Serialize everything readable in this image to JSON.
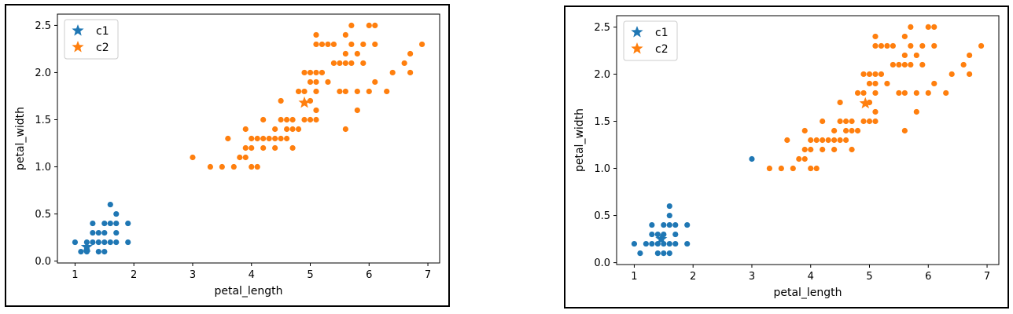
{
  "chart_data": [
    {
      "type": "scatter",
      "xlabel": "petal_length",
      "ylabel": "petal_width",
      "xlim": [
        0.7,
        7.2
      ],
      "ylim": [
        -0.02,
        2.62
      ],
      "xticks": [
        1,
        2,
        3,
        4,
        5,
        6,
        7
      ],
      "yticks": [
        0.0,
        0.5,
        1.0,
        1.5,
        2.0,
        2.5
      ],
      "grid": false,
      "legend": {
        "placement": "top-left",
        "entries": [
          "c1",
          "c2"
        ]
      },
      "colors": {
        "c1": "#1f77b4",
        "c2": "#ff7f0e"
      },
      "series": [
        {
          "name": "c1",
          "color": "#1f77b4",
          "points": [
            [
              1.0,
              0.2
            ],
            [
              1.1,
              0.1
            ],
            [
              1.2,
              0.2
            ],
            [
              1.2,
              0.1
            ],
            [
              1.3,
              0.2
            ],
            [
              1.3,
              0.3
            ],
            [
              1.3,
              0.4
            ],
            [
              1.4,
              0.1
            ],
            [
              1.4,
              0.2
            ],
            [
              1.4,
              0.3
            ],
            [
              1.5,
              0.1
            ],
            [
              1.5,
              0.2
            ],
            [
              1.5,
              0.3
            ],
            [
              1.5,
              0.4
            ],
            [
              1.6,
              0.2
            ],
            [
              1.6,
              0.4
            ],
            [
              1.6,
              0.6
            ],
            [
              1.7,
              0.2
            ],
            [
              1.7,
              0.3
            ],
            [
              1.7,
              0.4
            ],
            [
              1.7,
              0.5
            ],
            [
              1.9,
              0.2
            ],
            [
              1.9,
              0.4
            ]
          ],
          "centroid": [
            1.2,
            0.15
          ]
        },
        {
          "name": "c2",
          "color": "#ff7f0e",
          "points": [
            [
              3.0,
              1.1
            ],
            [
              3.3,
              1.0
            ],
            [
              3.5,
              1.0
            ],
            [
              3.6,
              1.3
            ],
            [
              3.7,
              1.0
            ],
            [
              3.8,
              1.1
            ],
            [
              3.9,
              1.1
            ],
            [
              3.9,
              1.2
            ],
            [
              3.9,
              1.4
            ],
            [
              4.0,
              1.0
            ],
            [
              4.0,
              1.2
            ],
            [
              4.0,
              1.3
            ],
            [
              4.1,
              1.0
            ],
            [
              4.1,
              1.3
            ],
            [
              4.2,
              1.2
            ],
            [
              4.2,
              1.3
            ],
            [
              4.2,
              1.5
            ],
            [
              4.3,
              1.3
            ],
            [
              4.4,
              1.2
            ],
            [
              4.4,
              1.3
            ],
            [
              4.4,
              1.4
            ],
            [
              4.5,
              1.3
            ],
            [
              4.5,
              1.5
            ],
            [
              4.5,
              1.7
            ],
            [
              4.6,
              1.3
            ],
            [
              4.6,
              1.4
            ],
            [
              4.6,
              1.5
            ],
            [
              4.7,
              1.2
            ],
            [
              4.7,
              1.4
            ],
            [
              4.7,
              1.5
            ],
            [
              4.8,
              1.4
            ],
            [
              4.8,
              1.8
            ],
            [
              4.9,
              1.5
            ],
            [
              4.9,
              1.8
            ],
            [
              4.9,
              2.0
            ],
            [
              5.0,
              1.5
            ],
            [
              5.0,
              1.7
            ],
            [
              5.0,
              1.9
            ],
            [
              5.0,
              2.0
            ],
            [
              5.1,
              1.5
            ],
            [
              5.1,
              1.6
            ],
            [
              5.1,
              1.8
            ],
            [
              5.1,
              1.9
            ],
            [
              5.1,
              2.0
            ],
            [
              5.1,
              2.3
            ],
            [
              5.1,
              2.4
            ],
            [
              5.2,
              2.0
            ],
            [
              5.2,
              2.3
            ],
            [
              5.3,
              1.9
            ],
            [
              5.3,
              2.3
            ],
            [
              5.4,
              2.1
            ],
            [
              5.4,
              2.3
            ],
            [
              5.5,
              1.8
            ],
            [
              5.5,
              2.1
            ],
            [
              5.6,
              1.4
            ],
            [
              5.6,
              1.8
            ],
            [
              5.6,
              2.1
            ],
            [
              5.6,
              2.2
            ],
            [
              5.6,
              2.4
            ],
            [
              5.7,
              2.1
            ],
            [
              5.7,
              2.3
            ],
            [
              5.7,
              2.5
            ],
            [
              5.8,
              1.6
            ],
            [
              5.8,
              1.8
            ],
            [
              5.8,
              2.2
            ],
            [
              5.9,
              2.1
            ],
            [
              5.9,
              2.3
            ],
            [
              6.0,
              1.8
            ],
            [
              6.0,
              2.5
            ],
            [
              6.1,
              1.9
            ],
            [
              6.1,
              2.3
            ],
            [
              6.1,
              2.5
            ],
            [
              6.3,
              1.8
            ],
            [
              6.4,
              2.0
            ],
            [
              6.6,
              2.1
            ],
            [
              6.7,
              2.0
            ],
            [
              6.7,
              2.2
            ],
            [
              6.9,
              2.3
            ]
          ],
          "centroid": [
            4.9,
            1.68
          ]
        }
      ]
    },
    {
      "type": "scatter",
      "xlabel": "petal_length",
      "ylabel": "petal_width",
      "xlim": [
        0.7,
        7.2
      ],
      "ylim": [
        -0.02,
        2.62
      ],
      "xticks": [
        1,
        2,
        3,
        4,
        5,
        6,
        7
      ],
      "yticks": [
        0.0,
        0.5,
        1.0,
        1.5,
        2.0,
        2.5
      ],
      "grid": false,
      "legend": {
        "placement": "top-left",
        "entries": [
          "c1",
          "c2"
        ]
      },
      "colors": {
        "c1": "#1f77b4",
        "c2": "#ff7f0e"
      },
      "series": [
        {
          "name": "c1",
          "color": "#1f77b4",
          "points": [
            [
              1.0,
              0.2
            ],
            [
              1.1,
              0.1
            ],
            [
              1.2,
              0.2
            ],
            [
              1.3,
              0.2
            ],
            [
              1.3,
              0.3
            ],
            [
              1.3,
              0.4
            ],
            [
              1.4,
              0.1
            ],
            [
              1.4,
              0.2
            ],
            [
              1.4,
              0.3
            ],
            [
              1.5,
              0.1
            ],
            [
              1.5,
              0.2
            ],
            [
              1.5,
              0.3
            ],
            [
              1.5,
              0.4
            ],
            [
              1.6,
              0.1
            ],
            [
              1.6,
              0.2
            ],
            [
              1.6,
              0.4
            ],
            [
              1.6,
              0.5
            ],
            [
              1.6,
              0.6
            ],
            [
              1.7,
              0.2
            ],
            [
              1.7,
              0.3
            ],
            [
              1.7,
              0.4
            ],
            [
              1.9,
              0.2
            ],
            [
              1.9,
              0.4
            ],
            [
              3.0,
              1.1
            ]
          ],
          "centroid": [
            1.46,
            0.25
          ]
        },
        {
          "name": "c2",
          "color": "#ff7f0e",
          "points": [
            [
              3.3,
              1.0
            ],
            [
              3.5,
              1.0
            ],
            [
              3.6,
              1.3
            ],
            [
              3.7,
              1.0
            ],
            [
              3.8,
              1.1
            ],
            [
              3.9,
              1.1
            ],
            [
              3.9,
              1.2
            ],
            [
              3.9,
              1.4
            ],
            [
              4.0,
              1.0
            ],
            [
              4.0,
              1.2
            ],
            [
              4.0,
              1.3
            ],
            [
              4.1,
              1.0
            ],
            [
              4.1,
              1.3
            ],
            [
              4.2,
              1.2
            ],
            [
              4.2,
              1.3
            ],
            [
              4.2,
              1.5
            ],
            [
              4.3,
              1.3
            ],
            [
              4.4,
              1.2
            ],
            [
              4.4,
              1.3
            ],
            [
              4.4,
              1.4
            ],
            [
              4.5,
              1.3
            ],
            [
              4.5,
              1.5
            ],
            [
              4.5,
              1.7
            ],
            [
              4.6,
              1.3
            ],
            [
              4.6,
              1.4
            ],
            [
              4.6,
              1.5
            ],
            [
              4.7,
              1.2
            ],
            [
              4.7,
              1.4
            ],
            [
              4.7,
              1.5
            ],
            [
              4.8,
              1.4
            ],
            [
              4.8,
              1.8
            ],
            [
              4.9,
              1.5
            ],
            [
              4.9,
              1.8
            ],
            [
              4.9,
              2.0
            ],
            [
              5.0,
              1.5
            ],
            [
              5.0,
              1.7
            ],
            [
              5.0,
              1.9
            ],
            [
              5.0,
              2.0
            ],
            [
              5.1,
              1.5
            ],
            [
              5.1,
              1.6
            ],
            [
              5.1,
              1.8
            ],
            [
              5.1,
              1.9
            ],
            [
              5.1,
              2.0
            ],
            [
              5.1,
              2.3
            ],
            [
              5.1,
              2.4
            ],
            [
              5.2,
              2.0
            ],
            [
              5.2,
              2.3
            ],
            [
              5.3,
              1.9
            ],
            [
              5.3,
              2.3
            ],
            [
              5.4,
              2.1
            ],
            [
              5.4,
              2.3
            ],
            [
              5.5,
              1.8
            ],
            [
              5.5,
              2.1
            ],
            [
              5.6,
              1.4
            ],
            [
              5.6,
              1.8
            ],
            [
              5.6,
              2.1
            ],
            [
              5.6,
              2.2
            ],
            [
              5.6,
              2.4
            ],
            [
              5.7,
              2.1
            ],
            [
              5.7,
              2.3
            ],
            [
              5.7,
              2.5
            ],
            [
              5.8,
              1.6
            ],
            [
              5.8,
              1.8
            ],
            [
              5.8,
              2.2
            ],
            [
              5.9,
              2.1
            ],
            [
              5.9,
              2.3
            ],
            [
              6.0,
              1.8
            ],
            [
              6.0,
              2.5
            ],
            [
              6.1,
              1.9
            ],
            [
              6.1,
              2.3
            ],
            [
              6.1,
              2.5
            ],
            [
              6.3,
              1.8
            ],
            [
              6.4,
              2.0
            ],
            [
              6.6,
              2.1
            ],
            [
              6.7,
              2.0
            ],
            [
              6.7,
              2.2
            ],
            [
              6.9,
              2.3
            ]
          ],
          "centroid": [
            4.93,
            1.69
          ]
        }
      ]
    }
  ]
}
